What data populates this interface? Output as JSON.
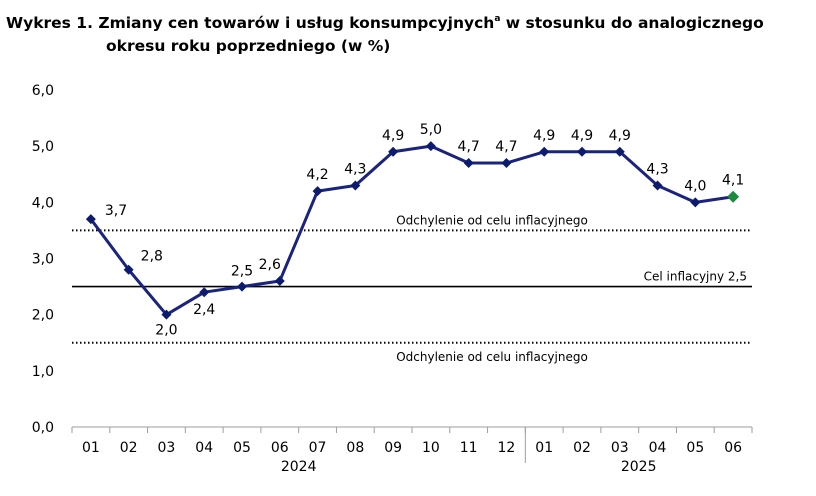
{
  "title": {
    "prefix": "Wykres 1. Zmiany cen towarów i usług konsumpcyjnych",
    "superscript": "a",
    "suffix": " w stosunku do analogicznego",
    "line2": "okresu roku poprzedniego (w %)"
  },
  "colors": {
    "series_line": "#1a237e",
    "marker": "#0d1b6e",
    "last_marker": "#1a8a3c",
    "target_line": "#000000",
    "band_line": "#000000"
  },
  "chart_data": {
    "type": "line",
    "title": "Zmiany cen towarów i usług konsumpcyjnych w stosunku do analogicznego okresu roku poprzedniego (w %)",
    "ylim": [
      0,
      6
    ],
    "yticks": [
      "0,0",
      "1,0",
      "2,0",
      "3,0",
      "4,0",
      "5,0",
      "6,0"
    ],
    "categories": [
      "01",
      "02",
      "03",
      "04",
      "05",
      "06",
      "07",
      "08",
      "09",
      "10",
      "11",
      "12",
      "01",
      "02",
      "03",
      "04",
      "05",
      "06"
    ],
    "years": [
      {
        "label": "2024",
        "from": 0,
        "to": 11
      },
      {
        "label": "2025",
        "from": 12,
        "to": 17
      }
    ],
    "series": [
      {
        "values": [
          3.7,
          2.8,
          2.0,
          2.4,
          2.5,
          2.6,
          4.2,
          4.3,
          4.9,
          5.0,
          4.7,
          4.7,
          4.9,
          4.9,
          4.9,
          4.3,
          4.0,
          4.1
        ],
        "labels": [
          "3,7",
          "2,8",
          "2,0",
          "2,4",
          "2,5",
          "2,6",
          "4,2",
          "4,3",
          "4,9",
          "5,0",
          "4,7",
          "4,7",
          "4,9",
          "4,9",
          "4,9",
          "4,3",
          "4,0",
          "4,1"
        ],
        "highlight_last": true
      }
    ],
    "reference_lines": [
      {
        "value": 3.5,
        "style": "dotted",
        "label": "Odchylenie od celu inflacyjnego"
      },
      {
        "value": 2.5,
        "style": "solid",
        "label": "Cel inflacyjny 2,5"
      },
      {
        "value": 1.5,
        "style": "dotted",
        "label": "Odchylenie od celu inflacyjnego"
      }
    ],
    "grid": false,
    "legend": "none"
  }
}
